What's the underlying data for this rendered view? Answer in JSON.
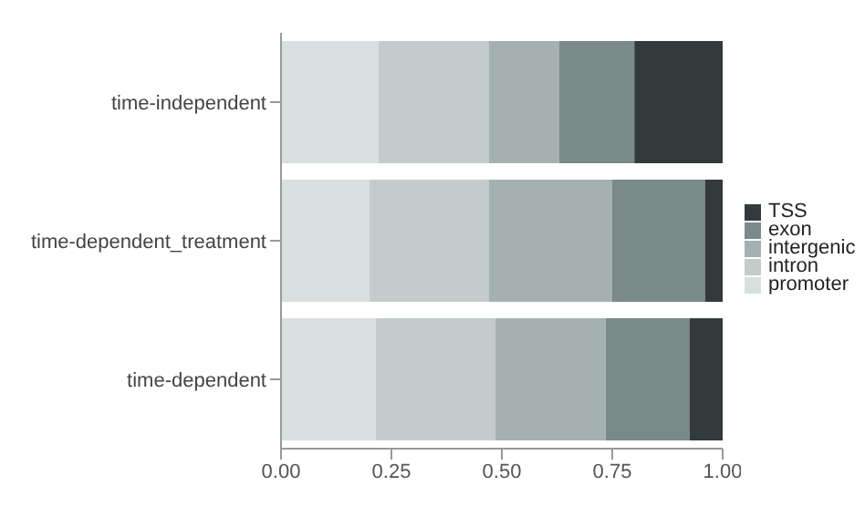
{
  "chart_data": {
    "type": "bar",
    "orientation": "horizontal",
    "stacked": true,
    "categories": [
      "time-independent",
      "time-dependent_treatment",
      "time-dependent"
    ],
    "series": [
      {
        "name": "promoter",
        "color": "#d9dfdf",
        "values": [
          0.22,
          0.2,
          0.215
        ]
      },
      {
        "name": "intron",
        "color": "#c4cccb",
        "values": [
          0.25,
          0.27,
          0.27
        ]
      },
      {
        "name": "intergenic",
        "color": "#a5b1b1",
        "values": [
          0.16,
          0.28,
          0.25
        ]
      },
      {
        "name": "exon",
        "color": "#7a8a88",
        "values": [
          0.17,
          0.21,
          0.19
        ]
      },
      {
        "name": "TSS",
        "color": "#323a3b",
        "values": [
          0.2,
          0.04,
          0.075
        ]
      }
    ],
    "xlim": [
      0,
      1
    ],
    "xticks": [
      {
        "value": 0,
        "label": "0.00"
      },
      {
        "value": 0.25,
        "label": "0.25"
      },
      {
        "value": 0.5,
        "label": "0.50"
      },
      {
        "value": 0.75,
        "label": "0.75"
      },
      {
        "value": 1,
        "label": "1.00"
      }
    ],
    "legend": "right"
  }
}
